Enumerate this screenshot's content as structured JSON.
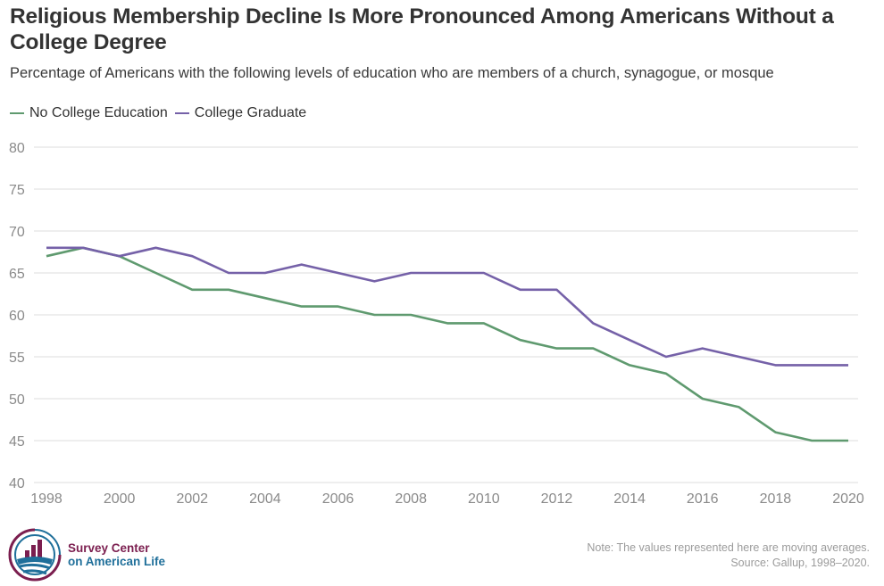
{
  "header": {
    "title": "Religious Membership Decline Is More Pronounced Among Americans Without a College Degree",
    "subtitle": "Percentage of Americans with the following levels of education who are members of a church, synagogue, or mosque"
  },
  "legend": [
    {
      "label": "No College Education",
      "color": "#5f9a6f"
    },
    {
      "label": "College Graduate",
      "color": "#7561a8"
    }
  ],
  "chart_data": {
    "type": "line",
    "title": "Religious Membership Decline Is More Pronounced Among Americans Without a College Degree",
    "subtitle": "Percentage of Americans with the following levels of education who are members of a church, synagogue, or mosque",
    "xlabel": "",
    "ylabel": "",
    "x": [
      1998,
      1999,
      2000,
      2001,
      2002,
      2003,
      2004,
      2005,
      2006,
      2007,
      2008,
      2009,
      2010,
      2011,
      2012,
      2013,
      2014,
      2015,
      2016,
      2017,
      2018,
      2019,
      2020
    ],
    "xticks": [
      "1998",
      "2000",
      "2002",
      "2004",
      "2006",
      "2008",
      "2010",
      "2012",
      "2014",
      "2016",
      "2018",
      "2020"
    ],
    "yticks": [
      "40",
      "45",
      "50",
      "55",
      "60",
      "65",
      "70",
      "75",
      "80"
    ],
    "xlim": [
      1998,
      2020
    ],
    "ylim": [
      40,
      80
    ],
    "grid": true,
    "legend_position": "top-left",
    "series": [
      {
        "name": "No College Education",
        "color": "#5f9a6f",
        "values": [
          67,
          68,
          67,
          65,
          63,
          63,
          62,
          61,
          61,
          60,
          60,
          59,
          59,
          57,
          56,
          56,
          54,
          53,
          50,
          49,
          46,
          45,
          45
        ]
      },
      {
        "name": "College Graduate",
        "color": "#7561a8",
        "values": [
          68,
          68,
          67,
          68,
          67,
          65,
          65,
          66,
          65,
          64,
          65,
          65,
          65,
          63,
          63,
          59,
          57,
          55,
          56,
          55,
          54,
          54,
          54
        ]
      }
    ]
  },
  "footer": {
    "logo_line1": "Survey Center",
    "logo_line2": "on American Life",
    "note": "Note: The values represented here are moving averages.",
    "source": "Source: Gallup, 1998–2020."
  }
}
